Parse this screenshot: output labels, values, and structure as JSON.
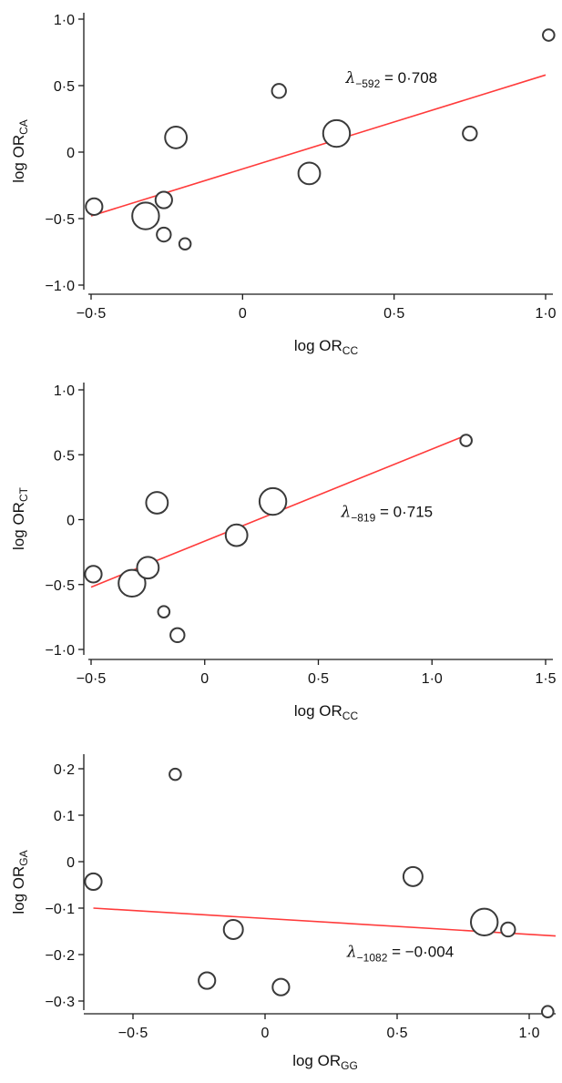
{
  "chart_data": [
    {
      "type": "scatter",
      "xlabel": {
        "base": "log OR",
        "sub": "CC"
      },
      "ylabel": {
        "base": "log OR",
        "sub": "CA"
      },
      "xlim": [
        -0.5,
        1.0
      ],
      "ylim": [
        -1.0,
        1.0
      ],
      "xticks": [
        -0.5,
        0,
        0.5,
        1.0
      ],
      "yticks": [
        -1.0,
        -0.5,
        0,
        0.5,
        1.0
      ],
      "xtick_labels": [
        "−0·5",
        "0",
        "0·5",
        "1·0"
      ],
      "ytick_labels": [
        "−1·0",
        "−0·5",
        "0",
        "0·5",
        "1·0"
      ],
      "points": [
        {
          "x": -0.49,
          "y": -0.41,
          "weight": 2
        },
        {
          "x": -0.32,
          "y": -0.48,
          "weight": 4
        },
        {
          "x": -0.26,
          "y": -0.36,
          "weight": 2
        },
        {
          "x": -0.26,
          "y": -0.62,
          "weight": 1.5
        },
        {
          "x": -0.19,
          "y": -0.69,
          "weight": 1
        },
        {
          "x": -0.22,
          "y": 0.11,
          "weight": 3
        },
        {
          "x": 0.12,
          "y": 0.46,
          "weight": 1.5
        },
        {
          "x": 0.22,
          "y": -0.16,
          "weight": 3
        },
        {
          "x": 0.31,
          "y": 0.14,
          "weight": 4
        },
        {
          "x": 0.75,
          "y": 0.14,
          "weight": 1.5
        },
        {
          "x": 1.01,
          "y": 0.88,
          "weight": 1
        }
      ],
      "fit_line": {
        "x": [
          -0.5,
          1.0
        ],
        "y": [
          -0.48,
          0.58
        ]
      },
      "annotation": {
        "symbol": "λ",
        "sub": "−592",
        "text": " = 0·708",
        "x": 0.34,
        "y": 0.52
      }
    },
    {
      "type": "scatter",
      "xlabel": {
        "base": "log OR",
        "sub": "CC"
      },
      "ylabel": {
        "base": "log OR",
        "sub": "CT"
      },
      "xlim": [
        -0.5,
        1.5
      ],
      "ylim": [
        -1.0,
        1.0
      ],
      "xticks": [
        -0.5,
        0,
        0.5,
        1.0,
        1.5
      ],
      "yticks": [
        -1.0,
        -0.5,
        0,
        0.5,
        1.0
      ],
      "xtick_labels": [
        "−0·5",
        "0",
        "0·5",
        "1·0",
        "1·5"
      ],
      "ytick_labels": [
        "−1·0",
        "−0·5",
        "0",
        "0·5",
        "1·0"
      ],
      "points": [
        {
          "x": -0.49,
          "y": -0.42,
          "weight": 2
        },
        {
          "x": -0.32,
          "y": -0.49,
          "weight": 4
        },
        {
          "x": -0.25,
          "y": -0.37,
          "weight": 3
        },
        {
          "x": -0.21,
          "y": 0.13,
          "weight": 3
        },
        {
          "x": -0.18,
          "y": -0.71,
          "weight": 1
        },
        {
          "x": -0.12,
          "y": -0.89,
          "weight": 1.5
        },
        {
          "x": 0.14,
          "y": -0.12,
          "weight": 3
        },
        {
          "x": 0.3,
          "y": 0.14,
          "weight": 4
        },
        {
          "x": 1.15,
          "y": 0.61,
          "weight": 1
        }
      ],
      "fit_line": {
        "x": [
          -0.5,
          1.15
        ],
        "y": [
          -0.52,
          0.65
        ]
      },
      "annotation": {
        "symbol": "λ",
        "sub": "−819",
        "text": " = 0·715",
        "x": 0.6,
        "y": 0.02
      }
    },
    {
      "type": "scatter",
      "xlabel": {
        "base": "log OR",
        "sub": "GG"
      },
      "ylabel": {
        "base": "log OR",
        "sub": "GA"
      },
      "xlim": [
        -0.5,
        1.0
      ],
      "ylim": [
        -0.3,
        0.2
      ],
      "xticks": [
        -0.5,
        0,
        0.5,
        1.0
      ],
      "yticks": [
        -0.3,
        -0.2,
        -0.1,
        0,
        0.1,
        0.2
      ],
      "xtick_labels": [
        "−0·5",
        "0",
        "0·5",
        "1·0"
      ],
      "ytick_labels": [
        "−0·3",
        "−0·2",
        "−0·1",
        "0",
        "0·1",
        "0·2"
      ],
      "points": [
        {
          "x": -0.65,
          "y": -0.043,
          "weight": 2
        },
        {
          "x": -0.34,
          "y": 0.188,
          "weight": 1
        },
        {
          "x": -0.22,
          "y": -0.256,
          "weight": 2
        },
        {
          "x": -0.12,
          "y": -0.146,
          "weight": 2.5
        },
        {
          "x": 0.06,
          "y": -0.27,
          "weight": 2
        },
        {
          "x": 0.56,
          "y": -0.032,
          "weight": 2.5
        },
        {
          "x": 0.83,
          "y": -0.13,
          "weight": 4
        },
        {
          "x": 0.92,
          "y": -0.146,
          "weight": 1.5
        },
        {
          "x": 1.07,
          "y": -0.323,
          "weight": 1
        }
      ],
      "fit_line": {
        "x": [
          -0.65,
          1.1
        ],
        "y": [
          -0.1,
          -0.16
        ]
      },
      "annotation": {
        "symbol": "λ",
        "sub": "−1082",
        "text": " = −0·004",
        "x": 0.31,
        "y": -0.205
      }
    }
  ]
}
